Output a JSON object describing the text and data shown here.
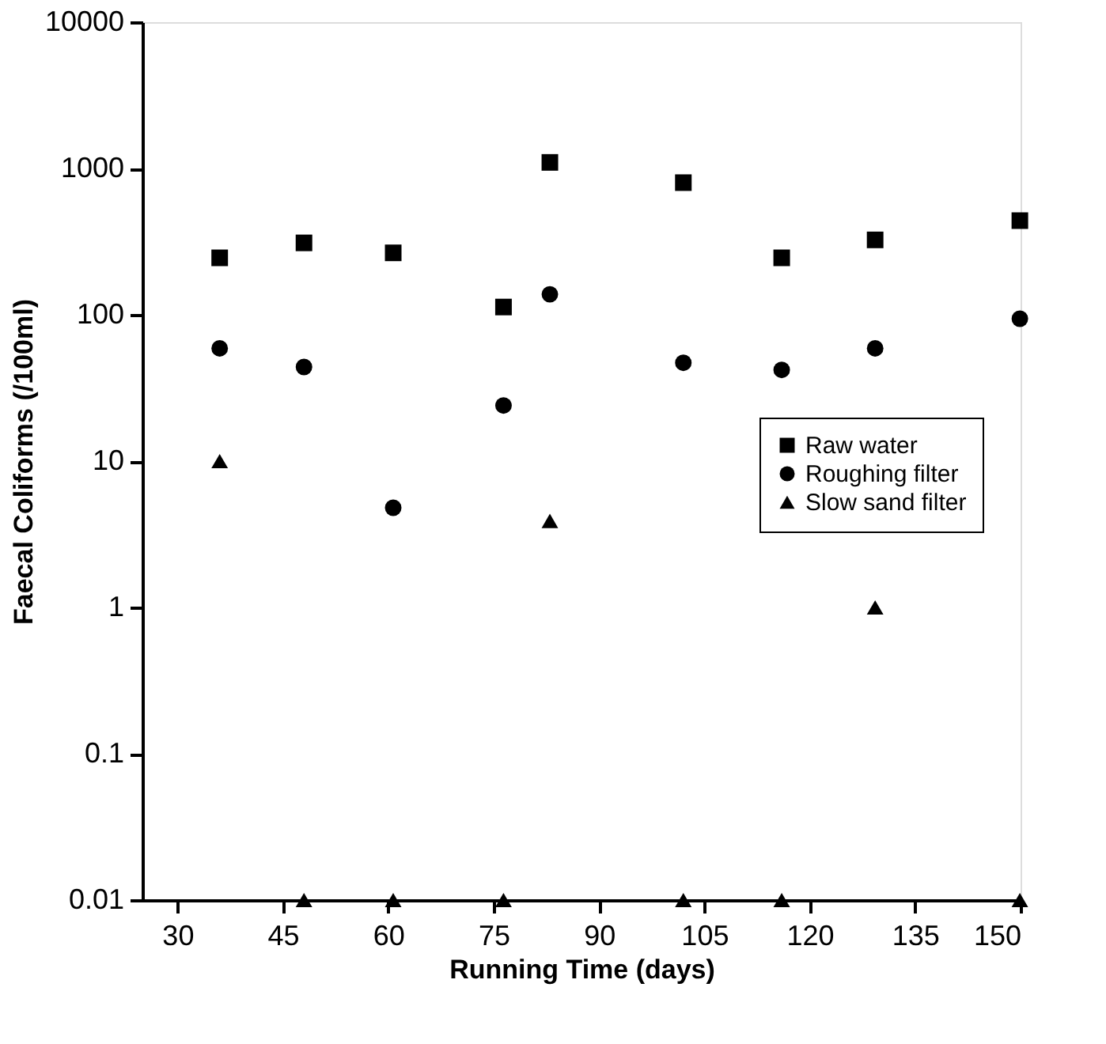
{
  "chart_data": {
    "type": "scatter",
    "xlabel": "Running Time (days)",
    "ylabel": "Faecal Coliforms (/100ml)",
    "x": [
      36,
      48,
      60.7,
      76.4,
      83,
      102,
      116,
      129.3,
      149.9
    ],
    "series": [
      {
        "name": "Raw water",
        "color": "#000000",
        "marker": "square",
        "values": [
          245,
          310,
          265,
          113,
          1100,
          800,
          245,
          325,
          440
        ]
      },
      {
        "name": "Roughing filter",
        "color": "#000000",
        "marker": "circle",
        "values": [
          59,
          44,
          4.8,
          24,
          138,
          47,
          42,
          59,
          94
        ]
      },
      {
        "name": "Slow sand filter",
        "color": "#000000",
        "marker": "triangle",
        "values": [
          10,
          0.01,
          0.01,
          0.01,
          3.9,
          0.01,
          0.01,
          1.0,
          0.01
        ]
      }
    ],
    "log": "y",
    "xlim": [
      25,
      150
    ],
    "xticks": [
      30,
      45,
      60,
      75,
      90,
      105,
      120,
      135,
      150
    ],
    "ylim": [
      0.01,
      10000
    ],
    "yticks": [
      0.01,
      0.1,
      1,
      10,
      100,
      1000,
      10000
    ],
    "grid": false,
    "legend": "right"
  }
}
